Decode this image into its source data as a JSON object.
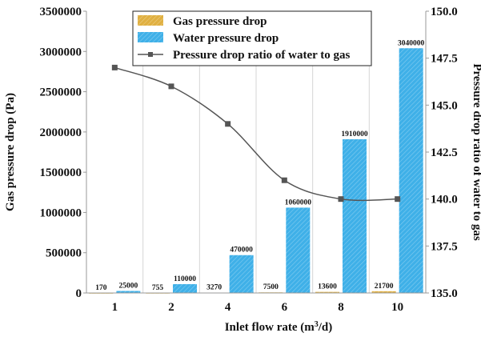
{
  "chart_data": {
    "type": "bar",
    "categories": [
      "1",
      "2",
      "4",
      "6",
      "8",
      "10"
    ],
    "series": [
      {
        "name": "Gas pressure drop",
        "kind": "bar",
        "axis": "left",
        "color": "#e0b041",
        "values": [
          170,
          755,
          3270,
          7500,
          13600,
          21700
        ],
        "labels": [
          "170",
          "755",
          "3270",
          "7500",
          "13600",
          "21700"
        ]
      },
      {
        "name": "Water pressure drop",
        "kind": "bar",
        "axis": "left",
        "color": "#3fb0e8",
        "values": [
          25000,
          110000,
          470000,
          1060000,
          1910000,
          3040000
        ],
        "labels": [
          "25000",
          "110000",
          "470000",
          "1060000",
          "1910000",
          "3040000"
        ]
      },
      {
        "name": "Pressure drop ratio of water to gas",
        "kind": "line",
        "axis": "right",
        "color": "#555555",
        "values": [
          147.0,
          146.0,
          144.0,
          141.0,
          140.0,
          140.0
        ]
      }
    ],
    "xlabel_parts": [
      "Inlet flow rate (m",
      "3",
      "/d)"
    ],
    "ylabel": "Gas pressure drop (Pa)",
    "y2label": "Pressure drop ratio of water to gas",
    "ylim": [
      0,
      3500000
    ],
    "yticks": [
      "0",
      "500000",
      "1000000",
      "1500000",
      "2000000",
      "2500000",
      "3000000",
      "3500000"
    ],
    "y2lim": [
      135.0,
      150.0
    ],
    "y2ticks": [
      "135.0",
      "137.5",
      "140.0",
      "142.5",
      "145.0",
      "147.5",
      "150.0"
    ],
    "grid": "vertical",
    "legend": "top"
  }
}
